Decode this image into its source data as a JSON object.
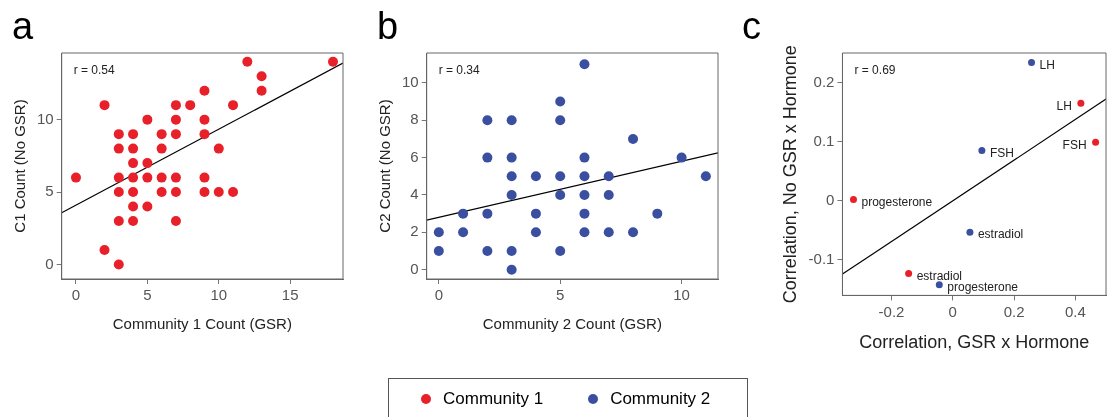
{
  "chart_data": [
    {
      "type": "scatter",
      "title": "a",
      "xlabel": "Community 1 Count (GSR)",
      "ylabel": "C1 Count (No GSR)",
      "xlim": [
        -1,
        18.7
      ],
      "ylim": [
        -1,
        14.6
      ],
      "xticks": [
        0,
        5,
        10,
        15
      ],
      "yticks": [
        0,
        5,
        10
      ],
      "grid": false,
      "marker": "circle",
      "annotations": [
        "r = 0.54"
      ],
      "series": [
        {
          "color": "#e8202a",
          "x": [
            0,
            2,
            2,
            3,
            3,
            4,
            3,
            4,
            4,
            5,
            3,
            4,
            5,
            6,
            7,
            9,
            3,
            4,
            6,
            7,
            9,
            10,
            11,
            4,
            5,
            3,
            4,
            7,
            5,
            7,
            9,
            6,
            7,
            9,
            6,
            10,
            7,
            8,
            11,
            9,
            12,
            13,
            13,
            18
          ],
          "values": [
            6,
            11,
            1,
            0,
            9,
            9,
            8,
            8,
            7,
            7,
            6,
            6,
            6,
            6,
            6,
            6,
            5,
            5,
            5,
            5,
            5,
            5,
            5,
            4,
            4,
            3,
            3,
            3,
            10,
            10,
            10,
            9,
            9,
            9,
            8,
            8,
            11,
            11,
            11,
            12,
            14,
            13,
            12,
            14
          ]
        },
        {
          "type": "line",
          "color": "#000000",
          "marker": "none",
          "x": [
            -1,
            18.7
          ],
          "values": [
            3.57,
            13.9
          ]
        }
      ]
    },
    {
      "type": "scatter",
      "title": "b",
      "xlabel": "Community 2 Count (GSR)",
      "ylabel": "C2 Count (No GSR)",
      "xlim": [
        -0.5,
        11.5
      ],
      "ylim": [
        -0.5,
        11.6
      ],
      "xticks": [
        0,
        5,
        10
      ],
      "yticks": [
        0,
        2,
        4,
        6,
        8,
        10
      ],
      "grid": false,
      "marker": "circle",
      "annotations": [
        "r = 0.34"
      ],
      "series": [
        {
          "color": "#3a4fa0",
          "x": [
            0,
            0,
            1,
            1,
            2,
            2,
            2,
            2,
            3,
            3,
            3,
            3,
            3,
            3,
            4,
            4,
            4,
            5,
            5,
            5,
            5,
            5,
            6,
            6,
            6,
            6,
            6,
            6,
            7,
            7,
            7,
            8,
            8,
            9,
            10,
            11
          ],
          "values": [
            2,
            1,
            3,
            2,
            8,
            6,
            3,
            1,
            8,
            6,
            5,
            4,
            1,
            0,
            5,
            3,
            2,
            9,
            8,
            5,
            4,
            1,
            11,
            6,
            5,
            4,
            3,
            2,
            5,
            4,
            2,
            7,
            2,
            3,
            6,
            5
          ]
        },
        {
          "type": "line",
          "color": "#000000",
          "marker": "none",
          "x": [
            -0.5,
            11.5
          ],
          "values": [
            2.65,
            6.25
          ]
        }
      ]
    },
    {
      "type": "scatter",
      "title": "c",
      "xlabel": "Correlation, GSR x Hormone",
      "ylabel": "Correlation, No GSR x Hormone",
      "xlim": [
        -0.36,
        0.5
      ],
      "ylim": [
        -0.16,
        0.25
      ],
      "xticks": [
        -0.2,
        0,
        0.2,
        0.4
      ],
      "yticks": [
        -0.1,
        0,
        0.1,
        0.2
      ],
      "grid": false,
      "marker": "circle",
      "legend": "bottom",
      "annotations": [
        "r = 0.69",
        {
          "text": "progesterone",
          "x": -0.324,
          "y": 0.002
        },
        {
          "text": "estradiol",
          "x": -0.144,
          "y": -0.123
        },
        {
          "text": "LH",
          "x": 0.418,
          "y": 0.165
        },
        {
          "text": "FSH",
          "x": 0.466,
          "y": 0.099
        },
        {
          "text": "LH",
          "x": 0.257,
          "y": 0.234
        },
        {
          "text": "FSH",
          "x": 0.095,
          "y": 0.085
        },
        {
          "text": "estradiol",
          "x": 0.056,
          "y": -0.053
        },
        {
          "text": "progesterone",
          "x": -0.044,
          "y": -0.142
        }
      ],
      "series": [
        {
          "name": "Community 1",
          "color": "#e8202a",
          "x": [
            -0.324,
            -0.144,
            0.418,
            0.466
          ],
          "values": [
            0.002,
            -0.123,
            0.165,
            0.099
          ]
        },
        {
          "name": "Community 2",
          "color": "#3a4fa0",
          "x": [
            0.257,
            0.095,
            0.056,
            -0.044
          ],
          "values": [
            0.234,
            0.085,
            -0.053,
            -0.142
          ]
        },
        {
          "type": "line",
          "color": "#000000",
          "marker": "none",
          "x": [
            -0.36,
            0.5
          ],
          "values": [
            -0.124,
            0.172
          ]
        }
      ]
    }
  ]
}
